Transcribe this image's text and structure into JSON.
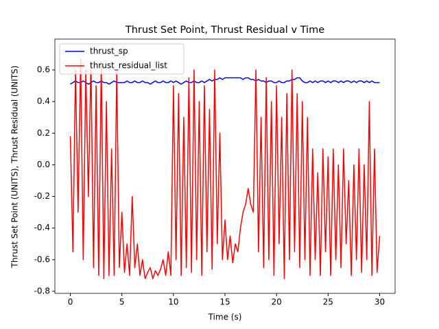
{
  "chart_data": {
    "type": "line",
    "title": "Thrust Set Point, Thrust Residual v Time",
    "x_label": "Time (s)",
    "y_label": "Thrust Set Point (UNITS), Thrust Residual (UNITS)",
    "x": [
      0,
      0.25,
      0.5,
      0.75,
      1,
      1.25,
      1.5,
      1.75,
      2,
      2.25,
      2.5,
      2.75,
      3,
      3.25,
      3.5,
      3.75,
      4,
      4.25,
      4.5,
      4.75,
      5,
      5.25,
      5.5,
      5.75,
      6,
      6.25,
      6.5,
      6.75,
      7,
      7.25,
      7.5,
      7.75,
      8,
      8.25,
      8.5,
      8.75,
      9,
      9.25,
      9.5,
      9.75,
      10,
      10.25,
      10.5,
      10.75,
      11,
      11.25,
      11.5,
      11.75,
      12,
      12.25,
      12.5,
      12.75,
      13,
      13.25,
      13.5,
      13.75,
      14,
      14.25,
      14.5,
      14.75,
      15,
      15.25,
      15.5,
      15.75,
      16,
      16.25,
      16.5,
      16.75,
      17,
      17.25,
      17.5,
      17.75,
      18,
      18.25,
      18.5,
      18.75,
      19,
      19.25,
      19.5,
      19.75,
      20,
      20.25,
      20.5,
      20.75,
      21,
      21.25,
      21.5,
      21.75,
      22,
      22.25,
      22.5,
      22.75,
      23,
      23.25,
      23.5,
      23.75,
      24,
      24.25,
      24.5,
      24.75,
      25,
      25.25,
      25.5,
      25.75,
      26,
      26.25,
      26.5,
      26.75,
      27,
      27.25,
      27.5,
      27.75,
      28,
      28.25,
      28.5,
      28.75,
      29,
      29.25,
      29.5,
      29.75,
      30
    ],
    "series": [
      {
        "name": "thrust_sp",
        "color": "#0000ff",
        "values": [
          0.51,
          0.52,
          0.53,
          0.52,
          0.52,
          0.53,
          0.52,
          0.51,
          0.52,
          0.53,
          0.52,
          0.52,
          0.53,
          0.52,
          0.52,
          0.51,
          0.52,
          0.53,
          0.52,
          0.52,
          0.52,
          0.52,
          0.53,
          0.52,
          0.52,
          0.53,
          0.52,
          0.52,
          0.53,
          0.52,
          0.52,
          0.51,
          0.52,
          0.53,
          0.52,
          0.52,
          0.53,
          0.52,
          0.52,
          0.53,
          0.52,
          0.53,
          0.52,
          0.51,
          0.52,
          0.53,
          0.52,
          0.52,
          0.53,
          0.52,
          0.52,
          0.53,
          0.52,
          0.53,
          0.54,
          0.53,
          0.54,
          0.54,
          0.55,
          0.54,
          0.55,
          0.55,
          0.55,
          0.55,
          0.55,
          0.55,
          0.55,
          0.54,
          0.55,
          0.55,
          0.54,
          0.54,
          0.53,
          0.54,
          0.53,
          0.53,
          0.52,
          0.53,
          0.53,
          0.52,
          0.52,
          0.53,
          0.52,
          0.52,
          0.53,
          0.53,
          0.54,
          0.54,
          0.55,
          0.55,
          0.53,
          0.52,
          0.52,
          0.53,
          0.52,
          0.53,
          0.52,
          0.53,
          0.53,
          0.52,
          0.53,
          0.52,
          0.53,
          0.53,
          0.52,
          0.53,
          0.52,
          0.53,
          0.53,
          0.52,
          0.53,
          0.52,
          0.53,
          0.53,
          0.52,
          0.53,
          0.52,
          0.53,
          0.52,
          0.52,
          0.52
        ]
      },
      {
        "name": "thrust_residual_list",
        "color": "#ff0000",
        "values": [
          0.18,
          -0.55,
          0.6,
          -0.3,
          0.67,
          -0.6,
          0.6,
          -0.2,
          0.65,
          -0.65,
          0.5,
          -0.7,
          0.65,
          -0.72,
          0.4,
          -0.7,
          0.1,
          -0.7,
          0.6,
          -0.65,
          -0.3,
          -0.68,
          -0.5,
          -0.7,
          -0.2,
          -0.65,
          -0.5,
          -0.7,
          -0.6,
          -0.72,
          -0.68,
          -0.65,
          -0.72,
          -0.67,
          -0.7,
          -0.66,
          -0.6,
          -0.7,
          -0.55,
          -0.7,
          0.5,
          -0.6,
          0.45,
          -0.7,
          0.3,
          -0.65,
          0.55,
          -0.68,
          0.6,
          -0.6,
          0.4,
          -0.7,
          0.5,
          -0.55,
          0.35,
          -0.66,
          0.6,
          -0.5,
          0.2,
          -0.6,
          -0.35,
          -0.6,
          -0.45,
          -0.62,
          -0.5,
          -0.55,
          -0.4,
          -0.3,
          -0.25,
          -0.15,
          -0.25,
          -0.3,
          0.6,
          -0.55,
          0.3,
          -0.65,
          0.55,
          -0.6,
          0.4,
          -0.7,
          0.5,
          -0.5,
          0.3,
          -0.72,
          0.45,
          -0.6,
          0.6,
          -0.55,
          0.45,
          -0.65,
          0.4,
          -0.6,
          0.3,
          -0.7,
          0.1,
          -0.6,
          -0.05,
          -0.7,
          0.1,
          -0.55,
          0.05,
          -0.7,
          0.1,
          -0.6,
          0.0,
          -0.65,
          0.1,
          -0.5,
          -0.1,
          -0.7,
          0.0,
          -0.6,
          0.1,
          -0.68,
          0.0,
          -0.6,
          0.4,
          -0.7,
          0.1,
          -0.68,
          -0.45
        ]
      }
    ],
    "xlim": [
      -1.5,
      31.5
    ],
    "xticks": [
      0,
      5,
      10,
      15,
      20,
      25,
      30
    ],
    "ylim": [
      -0.813,
      0.795
    ],
    "yticks": [
      -0.8,
      -0.6,
      -0.4,
      -0.2,
      {
        "value": 0,
        "label": "0.0"
      },
      0.2,
      0.4,
      0.6
    ],
    "legend": "upper left"
  }
}
